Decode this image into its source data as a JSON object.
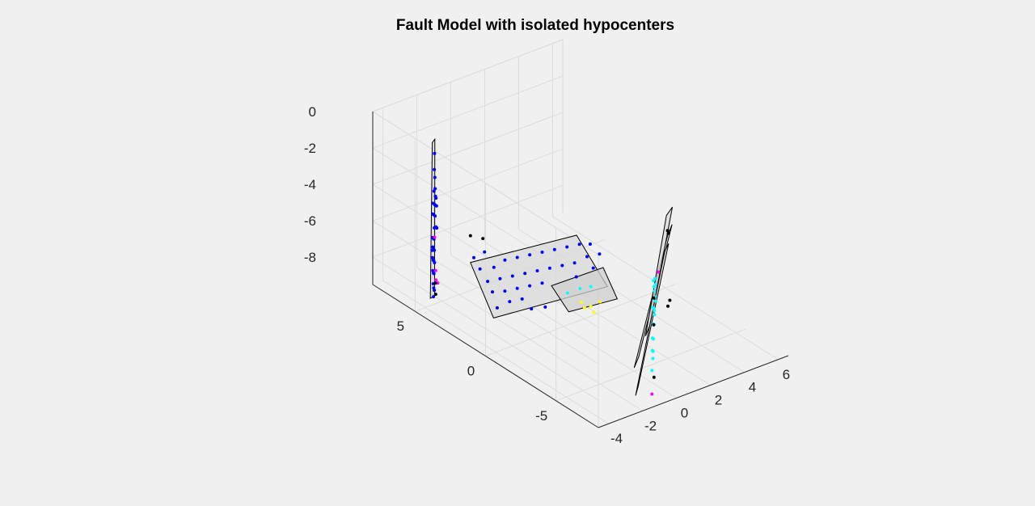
{
  "chart_data": {
    "type": "scatter",
    "title": "Fault Model with isolated hypocenters",
    "xlabel": "",
    "ylabel": "",
    "zlabel": "",
    "xlim": [
      -4.6,
      6.6
    ],
    "ylim": [
      -8,
      8
    ],
    "zlim": [
      -9.5,
      0
    ],
    "x_ticks": [
      "-4",
      "-2",
      "0",
      "2",
      "4",
      "6"
    ],
    "y_ticks": [
      "-5",
      "0",
      "5"
    ],
    "z_ticks": [
      "0",
      "-2",
      "-4",
      "-6",
      "-8"
    ],
    "grid": true,
    "view": "3d-iso",
    "fault_planes": [
      {
        "name": "",
        "fill": "#d9d9d9",
        "vertices": [
          [
            -4.0,
            4.5,
            -0.2
          ],
          [
            -3.6,
            4.8,
            -0.3
          ],
          [
            -3.2,
            5.3,
            -9.3
          ],
          [
            -3.7,
            5.0,
            -9.1
          ]
        ]
      },
      {
        "name": "",
        "fill": "#d9d9d9",
        "vertices": [
          [
            -3.0,
            3.0,
            -6.4
          ],
          [
            0.6,
            -0.2,
            -4.6
          ],
          [
            1.5,
            -1.3,
            -7.2
          ],
          [
            -2.3,
            2.2,
            -9.3
          ]
        ]
      },
      {
        "name": "",
        "fill": "#cfcfcf",
        "vertices": [
          [
            -0.3,
            0.5,
            -7.4
          ],
          [
            1.5,
            -1.0,
            -6.3
          ],
          [
            2.0,
            -1.4,
            -8.0
          ],
          [
            0.3,
            0.0,
            -8.8
          ]
        ]
      },
      {
        "name": "",
        "fill": "#d9d9d9",
        "vertices": [
          [
            3.3,
            -3.4,
            -4.0
          ],
          [
            3.9,
            -3.0,
            -3.8
          ],
          [
            2.6,
            -2.2,
            -11.0
          ],
          [
            2.0,
            -2.6,
            -11.2
          ]
        ]
      },
      {
        "name": "",
        "fill": "#d9d9d9",
        "vertices": [
          [
            3.9,
            -2.6,
            -3.5
          ],
          [
            4.5,
            -2.3,
            -3.4
          ],
          [
            3.6,
            -1.8,
            -9.8
          ],
          [
            3.0,
            -2.2,
            -10.0
          ]
        ]
      },
      {
        "name": "",
        "fill": "#d9d9d9",
        "vertices": [
          [
            2.8,
            -3.8,
            -4.5
          ],
          [
            3.2,
            -3.6,
            -4.3
          ],
          [
            1.9,
            -3.0,
            -12.0
          ],
          [
            1.5,
            -3.3,
            -12.2
          ]
        ]
      }
    ],
    "series": [
      {
        "name": "",
        "color": "#0000ff",
        "points": [
          [
            -3.7,
            4.7,
            -1.0
          ],
          [
            -3.8,
            4.6,
            -1.8
          ],
          [
            -3.6,
            4.8,
            -2.4
          ],
          [
            -3.9,
            4.5,
            -2.9
          ],
          [
            -3.5,
            4.9,
            -3.1
          ],
          [
            -3.7,
            4.6,
            -3.4
          ],
          [
            -3.8,
            4.7,
            -3.7
          ],
          [
            -3.6,
            4.8,
            -3.9
          ],
          [
            -3.4,
            5.0,
            -3.6
          ],
          [
            -3.9,
            4.6,
            -4.2
          ],
          [
            -3.7,
            4.8,
            -4.4
          ],
          [
            -3.5,
            4.9,
            -4.6
          ],
          [
            -3.8,
            4.5,
            -4.9
          ],
          [
            -3.6,
            4.7,
            -5.1
          ],
          [
            -3.4,
            4.9,
            -5.3
          ],
          [
            -3.9,
            4.6,
            -5.5
          ],
          [
            -3.7,
            4.8,
            -5.7
          ],
          [
            -3.5,
            5.0,
            -5.9
          ],
          [
            -3.8,
            4.7,
            -6.1
          ],
          [
            -3.6,
            4.9,
            -6.3
          ],
          [
            -3.4,
            5.1,
            -6.0
          ],
          [
            -3.9,
            4.6,
            -6.6
          ],
          [
            -3.7,
            4.8,
            -6.9
          ],
          [
            -3.5,
            5.0,
            -7.1
          ],
          [
            -3.3,
            5.2,
            -6.7
          ],
          [
            -3.8,
            4.7,
            -7.4
          ],
          [
            -3.6,
            4.9,
            -7.7
          ],
          [
            -3.4,
            5.1,
            -7.9
          ],
          [
            -3.7,
            4.8,
            -8.2
          ],
          [
            -3.5,
            5.0,
            -8.6
          ],
          [
            -3.3,
            5.2,
            -8.9
          ],
          [
            -3.6,
            4.9,
            -9.0
          ],
          [
            -3.8,
            4.6,
            -5.0
          ],
          [
            -3.5,
            4.8,
            -4.0
          ],
          [
            -3.6,
            5.0,
            -6.5
          ],
          [
            -3.7,
            4.7,
            -7.0
          ],
          [
            -2.6,
            2.8,
            -6.8
          ],
          [
            -2.2,
            2.3,
            -6.6
          ],
          [
            -1.8,
            2.0,
            -6.2
          ],
          [
            -1.4,
            1.6,
            -6.0
          ],
          [
            -1.0,
            1.2,
            -5.8
          ],
          [
            -0.6,
            0.8,
            -5.6
          ],
          [
            -0.2,
            0.4,
            -5.4
          ],
          [
            0.2,
            0.0,
            -5.2
          ],
          [
            -2.4,
            2.5,
            -7.4
          ],
          [
            -2.0,
            2.1,
            -7.2
          ],
          [
            -1.6,
            1.7,
            -7.0
          ],
          [
            -1.2,
            1.3,
            -6.8
          ],
          [
            -0.8,
            0.9,
            -6.6
          ],
          [
            -0.4,
            0.5,
            -6.4
          ],
          [
            0.0,
            0.1,
            -6.2
          ],
          [
            0.4,
            -0.3,
            -6.0
          ],
          [
            -2.2,
            2.4,
            -8.0
          ],
          [
            -1.8,
            2.0,
            -7.9
          ],
          [
            -1.4,
            1.6,
            -7.7
          ],
          [
            -1.0,
            1.2,
            -7.5
          ],
          [
            -0.6,
            0.8,
            -7.3
          ],
          [
            -1.6,
            1.9,
            -8.5
          ],
          [
            -1.2,
            1.5,
            -8.3
          ],
          [
            -0.9,
            1.2,
            -8.8
          ],
          [
            -0.5,
            0.7,
            -8.6
          ],
          [
            -2.0,
            2.3,
            -8.9
          ],
          [
            0.6,
            -0.4,
            -5.0
          ],
          [
            0.8,
            -0.7,
            -5.6
          ],
          [
            1.0,
            -0.9,
            -6.2
          ],
          [
            0.5,
            -0.3,
            -6.8
          ],
          [
            -2.8,
            3.0,
            -6.2
          ],
          [
            -2.5,
            2.6,
            -5.8
          ],
          [
            1.2,
            -1.1,
            -5.4
          ],
          [
            0.9,
            -0.8,
            -4.9
          ]
        ]
      },
      {
        "name": "",
        "color": "#00ffff",
        "points": [
          [
            2.8,
            -3.0,
            -6.5
          ],
          [
            3.0,
            -2.8,
            -7.0
          ],
          [
            3.2,
            -2.6,
            -7.4
          ],
          [
            2.6,
            -3.2,
            -7.8
          ],
          [
            2.9,
            -2.9,
            -8.1
          ],
          [
            3.1,
            -2.7,
            -8.4
          ],
          [
            2.7,
            -3.1,
            -8.8
          ],
          [
            3.0,
            -2.8,
            -9.1
          ],
          [
            2.5,
            -3.3,
            -9.4
          ],
          [
            2.8,
            -3.0,
            -9.7
          ],
          [
            2.4,
            -3.4,
            -10.0
          ],
          [
            2.7,
            -3.1,
            -10.3
          ],
          [
            3.3,
            -2.5,
            -6.8
          ],
          [
            3.5,
            -2.3,
            -7.3
          ],
          [
            3.4,
            -2.4,
            -7.9
          ],
          [
            3.6,
            -2.2,
            -8.3
          ],
          [
            3.2,
            -2.6,
            -8.7
          ],
          [
            2.6,
            -3.2,
            -10.6
          ],
          [
            2.3,
            -3.5,
            -11.0
          ],
          [
            0.8,
            -0.2,
            -7.6
          ],
          [
            1.1,
            -0.6,
            -7.4
          ],
          [
            0.4,
            0.2,
            -7.9
          ]
        ]
      },
      {
        "name": "",
        "color": "#ffff00",
        "points": [
          [
            0.8,
            -0.3,
            -8.3
          ],
          [
            1.1,
            -0.6,
            -8.5
          ],
          [
            1.4,
            -0.9,
            -8.2
          ],
          [
            1.2,
            -0.7,
            -8.8
          ],
          [
            0.9,
            -0.4,
            -8.6
          ]
        ]
      },
      {
        "name": "",
        "color": "#ff00ff",
        "points": [
          [
            -3.8,
            4.5,
            -7.3
          ],
          [
            -3.7,
            4.6,
            -7.9
          ],
          [
            -3.6,
            4.6,
            -8.1
          ],
          [
            -3.7,
            4.7,
            -5.6
          ],
          [
            3.6,
            -2.4,
            -6.6
          ],
          [
            2.3,
            -3.5,
            -12.3
          ]
        ]
      },
      {
        "name": "",
        "color": "#000000",
        "points": [
          [
            -2.5,
            3.6,
            -5.4
          ],
          [
            -2.1,
            3.2,
            -5.5
          ],
          [
            -3.9,
            4.4,
            -7.9
          ],
          [
            -3.8,
            4.5,
            -8.6
          ],
          [
            3.8,
            -2.8,
            -4.2
          ],
          [
            4.1,
            -2.5,
            -4.6
          ],
          [
            4.6,
            -2.0,
            -8.7
          ],
          [
            4.4,
            -2.1,
            -8.9
          ],
          [
            3.4,
            -2.3,
            -8.0
          ],
          [
            2.9,
            -2.9,
            -9.0
          ],
          [
            2.5,
            -3.4,
            -11.5
          ]
        ]
      }
    ]
  }
}
